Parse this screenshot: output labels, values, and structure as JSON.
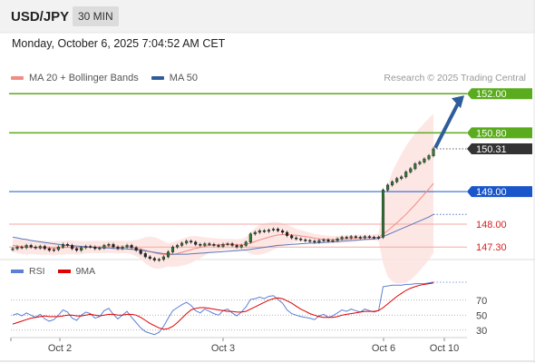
{
  "header": {
    "symbol": "USD/JPY",
    "interval": "30 MIN",
    "datetime": "Monday, October 6, 2025 7:04:52 AM CET"
  },
  "legend": {
    "ma20_label": "MA 20 + Bollinger Bands",
    "ma50_label": "MA 50",
    "ma20_color": "#f28b82",
    "ma50_color": "#2f5d9a",
    "credit": "Research © 2025 Trading Central"
  },
  "rsi_legend": {
    "rsi_label": "RSI",
    "ma_label": "9MA",
    "rsi_color": "#5b7fd6",
    "ma_color": "#e00000"
  },
  "chart_data": [
    {
      "type": "candlestick",
      "ylim": [
        147.0,
        152.2
      ],
      "x_ticks": [
        "Oct 2",
        "Oct 3",
        "Oct 6",
        "Oct 10"
      ],
      "levels": [
        {
          "label": "152.00",
          "value": 152.0,
          "kind": "resistance",
          "color": "#5aab1e"
        },
        {
          "label": "150.80",
          "value": 150.8,
          "kind": "resistance",
          "color": "#5aab1e"
        },
        {
          "label": "150.31",
          "value": 150.31,
          "kind": "current",
          "color": "#333333"
        },
        {
          "label": "149.00",
          "value": 149.0,
          "kind": "pivot",
          "color": "#1a56c9"
        },
        {
          "label": "148.00",
          "value": 148.0,
          "kind": "support",
          "color": "#f4a9a4"
        },
        {
          "label": "147.30",
          "value": 147.3,
          "kind": "support",
          "color": "#f4a9a4"
        }
      ],
      "close": [
        147.25,
        147.3,
        147.28,
        147.35,
        147.3,
        147.27,
        147.32,
        147.25,
        147.2,
        147.22,
        147.3,
        147.38,
        147.35,
        147.25,
        147.2,
        147.28,
        147.32,
        147.3,
        147.25,
        147.27,
        147.35,
        147.38,
        147.3,
        147.25,
        147.3,
        147.35,
        147.28,
        147.2,
        147.1,
        147.0,
        146.95,
        146.9,
        146.92,
        147.0,
        147.15,
        147.3,
        147.35,
        147.42,
        147.48,
        147.45,
        147.38,
        147.35,
        147.4,
        147.38,
        147.35,
        147.32,
        147.38,
        147.4,
        147.35,
        147.3,
        147.35,
        147.45,
        147.7,
        147.75,
        147.8,
        147.78,
        147.82,
        147.85,
        147.8,
        147.75,
        147.65,
        147.58,
        147.55,
        147.52,
        147.5,
        147.48,
        147.45,
        147.5,
        147.52,
        147.48,
        147.5,
        147.55,
        147.6,
        147.58,
        147.62,
        147.6,
        147.58,
        147.62,
        147.6,
        147.58,
        147.6,
        149.05,
        149.2,
        149.3,
        149.4,
        149.45,
        149.6,
        149.7,
        149.85,
        149.9,
        150.0,
        150.1,
        150.31
      ],
      "ma20": [
        147.35,
        147.33,
        147.31,
        147.3,
        147.3,
        147.29,
        147.28,
        147.28,
        147.27,
        147.26,
        147.27,
        147.28,
        147.29,
        147.29,
        147.28,
        147.28,
        147.29,
        147.3,
        147.3,
        147.3,
        147.3,
        147.31,
        147.31,
        147.3,
        147.3,
        147.3,
        147.29,
        147.27,
        147.24,
        147.2,
        147.16,
        147.12,
        147.09,
        147.07,
        147.06,
        147.07,
        147.1,
        147.14,
        147.18,
        147.22,
        147.26,
        147.29,
        147.32,
        147.35,
        147.36,
        147.37,
        147.38,
        147.38,
        147.38,
        147.37,
        147.37,
        147.38,
        147.42,
        147.47,
        147.52,
        147.56,
        147.6,
        147.64,
        147.67,
        147.68,
        147.68,
        147.67,
        147.66,
        147.64,
        147.62,
        147.6,
        147.57,
        147.55,
        147.54,
        147.53,
        147.53,
        147.53,
        147.54,
        147.55,
        147.56,
        147.57,
        147.58,
        147.59,
        147.59,
        147.59,
        147.6,
        147.7,
        147.8,
        147.92,
        148.04,
        148.17,
        148.3,
        148.45,
        148.6,
        148.76,
        148.92,
        149.08,
        149.25
      ],
      "bb_upper": [
        147.55,
        147.55,
        147.54,
        147.53,
        147.52,
        147.5,
        147.5,
        147.49,
        147.48,
        147.48,
        147.48,
        147.49,
        147.5,
        147.5,
        147.49,
        147.48,
        147.48,
        147.49,
        147.49,
        147.49,
        147.49,
        147.5,
        147.5,
        147.5,
        147.49,
        147.49,
        147.5,
        147.52,
        147.55,
        147.6,
        147.62,
        147.6,
        147.55,
        147.48,
        147.42,
        147.45,
        147.5,
        147.55,
        147.6,
        147.63,
        147.64,
        147.62,
        147.6,
        147.58,
        147.57,
        147.56,
        147.55,
        147.55,
        147.55,
        147.54,
        147.55,
        147.6,
        147.75,
        147.88,
        147.98,
        148.02,
        148.05,
        148.07,
        148.06,
        148.03,
        147.98,
        147.92,
        147.86,
        147.82,
        147.78,
        147.74,
        147.7,
        147.68,
        147.66,
        147.65,
        147.64,
        147.64,
        147.65,
        147.66,
        147.67,
        147.67,
        147.68,
        147.68,
        147.68,
        147.68,
        147.72,
        148.6,
        149.2,
        149.6,
        149.9,
        150.15,
        150.4,
        150.6,
        150.78,
        150.95,
        151.1,
        151.25,
        151.38
      ],
      "bb_lower": [
        147.15,
        147.11,
        147.08,
        147.07,
        147.08,
        147.08,
        147.06,
        147.07,
        147.06,
        147.04,
        147.06,
        147.07,
        147.08,
        147.08,
        147.07,
        147.08,
        147.1,
        147.11,
        147.11,
        147.11,
        147.11,
        147.12,
        147.12,
        147.1,
        147.11,
        147.11,
        147.08,
        147.02,
        146.93,
        146.8,
        146.7,
        146.64,
        146.63,
        146.66,
        146.7,
        146.69,
        146.7,
        146.73,
        146.76,
        146.81,
        146.88,
        146.96,
        147.04,
        147.12,
        147.15,
        147.18,
        147.21,
        147.21,
        147.21,
        147.2,
        147.19,
        147.16,
        147.09,
        147.06,
        147.06,
        147.1,
        147.15,
        147.21,
        147.28,
        147.33,
        147.38,
        147.42,
        147.46,
        147.46,
        147.46,
        147.46,
        147.44,
        147.42,
        147.42,
        147.41,
        147.42,
        147.42,
        147.43,
        147.44,
        147.45,
        147.47,
        147.48,
        147.5,
        147.5,
        147.5,
        147.48,
        146.8,
        146.4,
        146.24,
        146.18,
        146.19,
        146.2,
        146.3,
        146.42,
        146.57,
        146.74,
        146.91,
        147.12
      ],
      "ma50": [
        147.6,
        147.58,
        147.55,
        147.53,
        147.5,
        147.48,
        147.46,
        147.44,
        147.42,
        147.4,
        147.38,
        147.36,
        147.35,
        147.34,
        147.33,
        147.32,
        147.31,
        147.3,
        147.29,
        147.28,
        147.27,
        147.27,
        147.26,
        147.25,
        147.25,
        147.24,
        147.23,
        147.22,
        147.2,
        147.18,
        147.16,
        147.14,
        147.12,
        147.1,
        147.09,
        147.08,
        147.08,
        147.08,
        147.08,
        147.09,
        147.1,
        147.11,
        147.12,
        147.13,
        147.14,
        147.15,
        147.16,
        147.17,
        147.18,
        147.19,
        147.2,
        147.21,
        147.23,
        147.25,
        147.27,
        147.29,
        147.31,
        147.33,
        147.35,
        147.36,
        147.37,
        147.38,
        147.39,
        147.4,
        147.41,
        147.42,
        147.42,
        147.43,
        147.44,
        147.45,
        147.46,
        147.47,
        147.48,
        147.49,
        147.5,
        147.51,
        147.52,
        147.53,
        147.54,
        147.55,
        147.56,
        147.62,
        147.68,
        147.74,
        147.8,
        147.86,
        147.92,
        147.98,
        148.04,
        148.1,
        148.16,
        148.22,
        148.3
      ],
      "forecast": {
        "from": 150.31,
        "to": 152.0
      }
    },
    {
      "type": "line",
      "title": "RSI",
      "ylim": [
        20,
        100
      ],
      "y_ticks": [
        30,
        50,
        70
      ],
      "series": [
        {
          "name": "RSI",
          "values": [
            50,
            52,
            49,
            53,
            50,
            47,
            51,
            45,
            42,
            44,
            50,
            57,
            54,
            46,
            43,
            50,
            54,
            52,
            46,
            48,
            56,
            59,
            51,
            45,
            50,
            55,
            47,
            40,
            33,
            28,
            26,
            24,
            27,
            35,
            46,
            56,
            60,
            64,
            67,
            63,
            56,
            53,
            58,
            55,
            52,
            50,
            56,
            58,
            53,
            49,
            54,
            61,
            71,
            72,
            74,
            72,
            75,
            76,
            71,
            66,
            57,
            52,
            50,
            48,
            47,
            46,
            44,
            49,
            51,
            47,
            49,
            53,
            57,
            55,
            58,
            56,
            54,
            58,
            56,
            54,
            56,
            88,
            89,
            90,
            90,
            90,
            91,
            91,
            92,
            92,
            92,
            93,
            94
          ]
        },
        {
          "name": "9MA",
          "values": [
            38,
            40,
            42,
            44,
            46,
            47,
            48,
            49,
            48,
            48,
            48,
            49,
            50,
            50,
            49,
            49,
            50,
            51,
            50,
            49,
            50,
            51,
            51,
            50,
            50,
            51,
            51,
            50,
            47,
            43,
            39,
            36,
            33,
            31,
            32,
            35,
            40,
            46,
            52,
            57,
            59,
            60,
            60,
            59,
            58,
            57,
            56,
            55,
            55,
            54,
            54,
            55,
            58,
            61,
            64,
            67,
            70,
            72,
            73,
            72,
            69,
            66,
            62,
            58,
            55,
            52,
            50,
            48,
            47,
            47,
            47,
            48,
            50,
            51,
            52,
            53,
            54,
            55,
            55,
            55,
            56,
            60,
            65,
            70,
            75,
            79,
            83,
            86,
            88,
            90,
            91,
            92,
            93
          ]
        }
      ]
    }
  ]
}
